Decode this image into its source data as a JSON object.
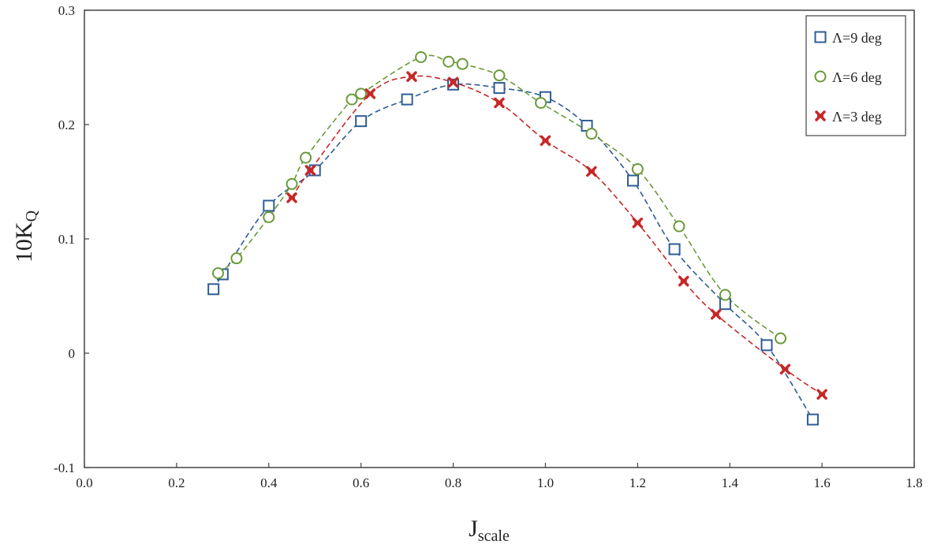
{
  "chart_data": {
    "type": "scatter",
    "xlabel": "J",
    "xlabel_sub": "scale",
    "ylabel": "10K",
    "ylabel_sub": "Q",
    "xlim": [
      0.0,
      1.8
    ],
    "ylim": [
      -0.1,
      0.3
    ],
    "xticks": [
      0.0,
      0.2,
      0.4,
      0.6,
      0.8,
      1.0,
      1.2,
      1.4,
      1.6,
      1.8
    ],
    "xtick_labels": [
      "0.0",
      "0.2",
      "0.4",
      "0.6",
      "0.8",
      "1.0",
      "1.2",
      "1.4",
      "1.6",
      "1.8"
    ],
    "yticks": [
      -0.1,
      0.0,
      0.1,
      0.2,
      0.3
    ],
    "ytick_labels": [
      "-0.1",
      "0",
      "0.1",
      "0.2",
      "0.3"
    ],
    "grid": false,
    "legend_position": "top-right",
    "series": [
      {
        "name": "Λ=9 deg",
        "marker": "square",
        "color": "#2e5d95",
        "x": [
          0.28,
          0.3,
          0.4,
          0.5,
          0.6,
          0.7,
          0.8,
          0.9,
          1.0,
          1.09,
          1.19,
          1.28,
          1.39,
          1.48,
          1.58
        ],
        "y": [
          0.056,
          0.069,
          0.129,
          0.16,
          0.203,
          0.222,
          0.235,
          0.232,
          0.224,
          0.199,
          0.151,
          0.091,
          0.043,
          0.007,
          -0.058
        ]
      },
      {
        "name": "Λ=6 deg",
        "marker": "circle",
        "color": "#6a9a3a",
        "x": [
          0.29,
          0.33,
          0.4,
          0.45,
          0.48,
          0.58,
          0.6,
          0.73,
          0.79,
          0.82,
          0.9,
          0.99,
          1.1,
          1.2,
          1.29,
          1.39,
          1.51
        ],
        "y": [
          0.07,
          0.083,
          0.119,
          0.148,
          0.171,
          0.222,
          0.227,
          0.259,
          0.255,
          0.253,
          0.243,
          0.219,
          0.192,
          0.161,
          0.111,
          0.051,
          0.013
        ]
      },
      {
        "name": "Λ=3 deg",
        "marker": "x",
        "color": "#c62828",
        "x": [
          0.45,
          0.49,
          0.62,
          0.71,
          0.8,
          0.9,
          1.0,
          1.1,
          1.2,
          1.3,
          1.37,
          1.52,
          1.6
        ],
        "y": [
          0.136,
          0.16,
          0.227,
          0.242,
          0.237,
          0.219,
          0.186,
          0.159,
          0.114,
          0.063,
          0.034,
          -0.014,
          -0.036
        ]
      }
    ]
  }
}
